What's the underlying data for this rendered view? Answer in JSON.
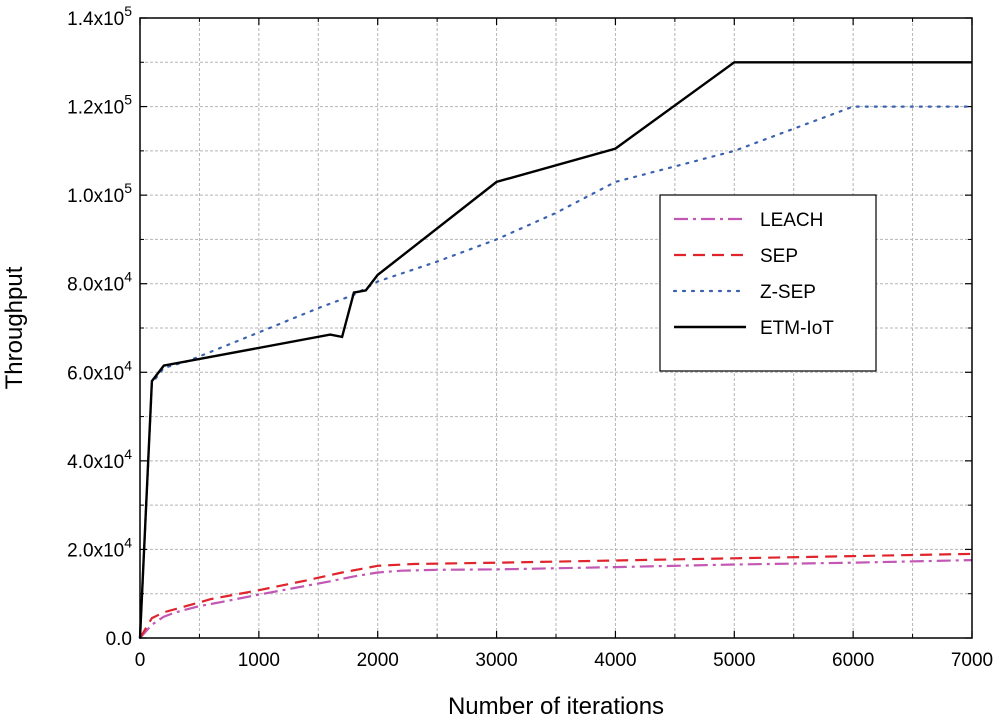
{
  "chart_data": {
    "type": "line",
    "title": "",
    "xlabel": "Number of iterations",
    "ylabel": "Throughput",
    "xlim": [
      0,
      7000
    ],
    "ylim": [
      0,
      140000
    ],
    "xticks": [
      0,
      1000,
      2000,
      3000,
      4000,
      5000,
      6000,
      7000
    ],
    "xtick_labels": [
      "0",
      "1000",
      "2000",
      "3000",
      "4000",
      "5000",
      "6000",
      "7000"
    ],
    "yticks": [
      0,
      20000,
      40000,
      60000,
      80000,
      100000,
      120000,
      140000
    ],
    "ytick_labels": [
      {
        "mantissa": "0.0",
        "exp": ""
      },
      {
        "mantissa": "2.0x10",
        "exp": "4"
      },
      {
        "mantissa": "4.0x10",
        "exp": "4"
      },
      {
        "mantissa": "6.0x10",
        "exp": "4"
      },
      {
        "mantissa": "8.0x10",
        "exp": "4"
      },
      {
        "mantissa": "1.0x10",
        "exp": "5"
      },
      {
        "mantissa": "1.2x10",
        "exp": "5"
      },
      {
        "mantissa": "1.4x10",
        "exp": "5"
      }
    ],
    "grid": true,
    "legend_position": "right-center",
    "series": [
      {
        "name": "LEACH",
        "color": "#c257b4",
        "dash": "dash-dot",
        "x": [
          0,
          100,
          200,
          300,
          500,
          700,
          1000,
          1300,
          1600,
          1800,
          2000,
          2200,
          2500,
          3000,
          4000,
          5000,
          6000,
          7000
        ],
        "y": [
          0,
          3000,
          4800,
          5800,
          7200,
          8200,
          9800,
          11300,
          12800,
          13900,
          14800,
          15200,
          15400,
          15500,
          16000,
          16600,
          17000,
          17600
        ]
      },
      {
        "name": "SEP",
        "color": "#e0242c",
        "dash": "dashed",
        "x": [
          0,
          100,
          200,
          400,
          600,
          1000,
          1400,
          1700,
          2000,
          2300,
          3000,
          4000,
          5000,
          6000,
          7000
        ],
        "y": [
          0,
          4500,
          5800,
          7300,
          8800,
          10800,
          13000,
          14800,
          16300,
          16700,
          17000,
          17500,
          18000,
          18500,
          19000
        ]
      },
      {
        "name": "Z-SEP",
        "color": "#3b62ae",
        "dash": "dotted",
        "x": [
          0,
          100,
          200,
          400,
          1000,
          1500,
          1800,
          2000,
          2500,
          3000,
          3500,
          4000,
          4500,
          5000,
          5500,
          6000,
          7000
        ],
        "y": [
          0,
          57500,
          61000,
          62500,
          69000,
          74500,
          77500,
          80500,
          85000,
          90000,
          96000,
          103000,
          106500,
          110000,
          115000,
          120000,
          120000
        ]
      },
      {
        "name": "ETM-IoT",
        "color": "#000000",
        "dash": "solid",
        "x": [
          0,
          100,
          200,
          1600,
          1700,
          1800,
          1900,
          2000,
          3000,
          4000,
          5000,
          7000
        ],
        "y": [
          0,
          58000,
          61500,
          68500,
          68000,
          78000,
          78500,
          82000,
          103000,
          110500,
          130000,
          130000
        ]
      }
    ]
  }
}
